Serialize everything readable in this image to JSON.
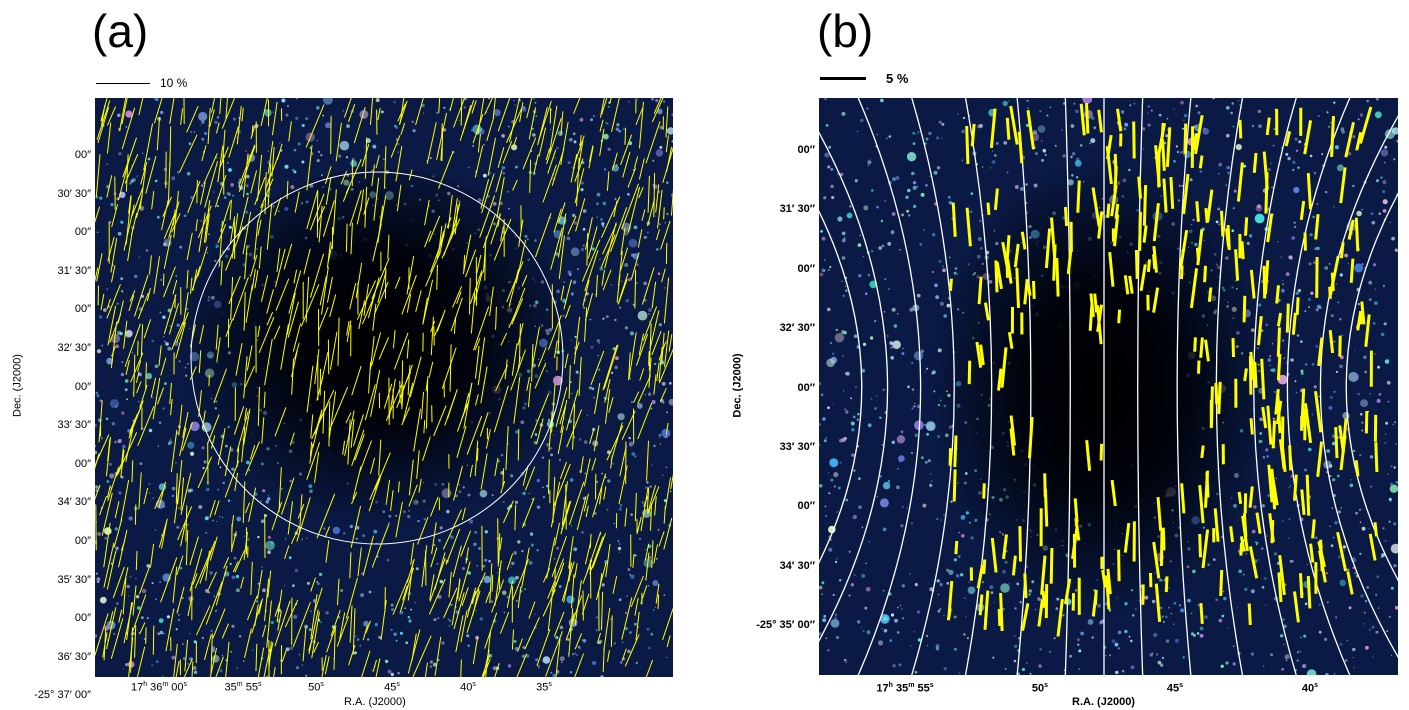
{
  "panel_a": {
    "label": "(a)",
    "scale_label": "10 %",
    "y_ticks": [
      "00″",
      "30′ 30″",
      "00″",
      "31′ 30″",
      "00″",
      "32′ 30″",
      "00″",
      "33′ 30″",
      "00″",
      "34′ 30″",
      "00″",
      "35′ 30″",
      "00″",
      "36′ 30″",
      "-25° 37′ 00″"
    ],
    "x_ticks": [
      {
        "h": "17",
        "hu": "h",
        "m": "36",
        "mu": "m",
        "s": "00",
        "su": "s"
      },
      {
        "m": "35",
        "mu": "m",
        "s": "55",
        "su": "s"
      },
      {
        "s": "50",
        "su": "s"
      },
      {
        "s": "45",
        "su": "s"
      },
      {
        "s": "40",
        "su": "s"
      },
      {
        "s": "35",
        "su": "s"
      }
    ],
    "xlabel": "R.A. (J2000)",
    "ylabel": "Dec. (J2000)"
  },
  "panel_b": {
    "label": "(b)",
    "scale_label": "5 %",
    "y_ticks": [
      "00″",
      "31′ 30″",
      "00″",
      "32′ 30″",
      "00″",
      "33′ 30″",
      "00″",
      "34′ 30″",
      "-25° 35′ 00″"
    ],
    "x_ticks": [
      {
        "h": "17",
        "hu": "h",
        "m": "35",
        "mu": "m",
        "s": "55",
        "su": "s"
      },
      {
        "s": "50",
        "su": "s"
      },
      {
        "s": "45",
        "su": "s"
      },
      {
        "s": "40",
        "su": "s"
      }
    ],
    "xlabel": "R.A. (J2000)",
    "ylabel": "Dec. (J2000)"
  },
  "colors": {
    "background": "#0a1a45",
    "vector": "#ffff00",
    "field_line": "#ffffff",
    "star": "#bfe0ff"
  }
}
